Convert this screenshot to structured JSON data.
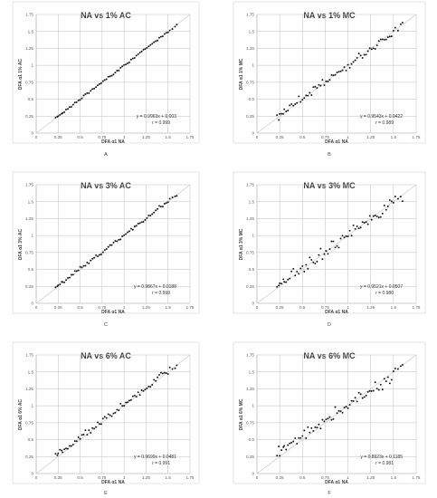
{
  "panels": [
    {
      "letter": "A",
      "title": "NA vs 1% AC",
      "eq": "y = 0.9963x + 0.003",
      "r": "r = 0.999"
    },
    {
      "letter": "B",
      "title": "NA vs 1% MC",
      "eq": "y = 0.9543x + 0.0422",
      "r": "r = 0.989"
    },
    {
      "letter": "C",
      "title": "NA vs 3% AC",
      "eq": "y = 0.9867x + 0.0188",
      "r": "r = 0.998"
    },
    {
      "letter": "D",
      "title": "NA vs 3% MC",
      "eq": "y = 0.9521x + 0.0507",
      "r": "r = 0.980"
    },
    {
      "letter": "E",
      "title": "NA vs 6% AC",
      "eq": "y = 0.9699x + 0.0481",
      "r": "r = 0.991"
    },
    {
      "letter": "F",
      "title": "NA vs 6% MC",
      "eq": "y = 0.8923x + 0.1185",
      "r": "r = 0.981"
    }
  ],
  "chart_data": [
    {
      "type": "scatter",
      "title": "NA vs 1% AC",
      "xlabel": "DFA α1 NA",
      "ylabel": "DFA α1 1% AC",
      "xlim": [
        0,
        1.75
      ],
      "ylim": [
        0,
        1.75
      ],
      "slope": 0.9963,
      "intercept": 0.003,
      "noise": 0.008,
      "x_ticks": [
        "0",
        "0.25",
        "0.5",
        "0.75",
        "1",
        "1.25",
        "1.5",
        "1.75"
      ],
      "y_ticks": [
        "0",
        "0.25",
        "0.5",
        "0.75",
        "1",
        "1.25",
        "1.5",
        "1.75"
      ]
    },
    {
      "type": "scatter",
      "title": "NA vs 1% MC",
      "xlabel": "DFA α1 NA",
      "ylabel": "DFA α1 1% MC",
      "xlim": [
        0,
        1.75
      ],
      "ylim": [
        0,
        1.75
      ],
      "slope": 0.9543,
      "intercept": 0.0422,
      "noise": 0.035,
      "x_ticks": [
        "0",
        "0.25",
        "0.5",
        "0.75",
        "1",
        "1.25",
        "1.5",
        "1.75"
      ],
      "y_ticks": [
        "0",
        "0.25",
        "0.5",
        "0.75",
        "1",
        "1.25",
        "1.5",
        "1.75"
      ]
    },
    {
      "type": "scatter",
      "title": "NA vs 3% AC",
      "xlabel": "DFA α1 NA",
      "ylabel": "DFA α1 3% AC",
      "xlim": [
        0,
        1.75
      ],
      "ylim": [
        0,
        1.75
      ],
      "slope": 0.9867,
      "intercept": 0.0188,
      "noise": 0.014,
      "x_ticks": [
        "0",
        "0.25",
        "0.5",
        "0.75",
        "1",
        "1.25",
        "1.5",
        "1.75"
      ],
      "y_ticks": [
        "0",
        "0.25",
        "0.5",
        "0.75",
        "1",
        "1.25",
        "1.5",
        "1.75"
      ]
    },
    {
      "type": "scatter",
      "title": "NA vs 3% MC",
      "xlabel": "DFA α1 NA",
      "ylabel": "DFA α1 3% MC",
      "xlim": [
        0,
        1.75
      ],
      "ylim": [
        0,
        1.75
      ],
      "slope": 0.9521,
      "intercept": 0.0507,
      "noise": 0.045,
      "x_ticks": [
        "0",
        "0.25",
        "0.5",
        "0.75",
        "1",
        "1.25",
        "1.5",
        "1.75"
      ],
      "y_ticks": [
        "0",
        "0.25",
        "0.5",
        "0.75",
        "1",
        "1.25",
        "1.5",
        "1.75"
      ]
    },
    {
      "type": "scatter",
      "title": "NA vs 6% AC",
      "xlabel": "DFA α1 NA",
      "ylabel": "DFA α1 6% AC",
      "xlim": [
        0,
        1.75
      ],
      "ylim": [
        0,
        1.75
      ],
      "slope": 0.9699,
      "intercept": 0.0481,
      "noise": 0.025,
      "x_ticks": [
        "0",
        "0.25",
        "0.5",
        "0.75",
        "1",
        "1.25",
        "1.5",
        "1.75"
      ],
      "y_ticks": [
        "0",
        "0.25",
        "0.5",
        "0.75",
        "1",
        "1.25",
        "1.5",
        "1.75"
      ]
    },
    {
      "type": "scatter",
      "title": "NA vs 6% MC",
      "xlabel": "DFA α1 NA",
      "ylabel": "DFA α1 6% MC",
      "xlim": [
        0,
        1.75
      ],
      "ylim": [
        0,
        1.75
      ],
      "slope": 0.8923,
      "intercept": 0.1185,
      "noise": 0.045,
      "x_ticks": [
        "0",
        "0.25",
        "0.5",
        "0.75",
        "1",
        "1.25",
        "1.5",
        "1.75"
      ],
      "y_ticks": [
        "0",
        "0.25",
        "0.5",
        "0.75",
        "1",
        "1.25",
        "1.5",
        "1.75"
      ]
    }
  ],
  "na_x_values": [
    0.22,
    0.24,
    0.25,
    0.27,
    0.29,
    0.3,
    0.32,
    0.34,
    0.36,
    0.38,
    0.4,
    0.42,
    0.44,
    0.46,
    0.48,
    0.5,
    0.52,
    0.54,
    0.56,
    0.58,
    0.6,
    0.62,
    0.64,
    0.66,
    0.68,
    0.7,
    0.72,
    0.74,
    0.76,
    0.78,
    0.8,
    0.82,
    0.84,
    0.86,
    0.88,
    0.9,
    0.92,
    0.94,
    0.96,
    0.98,
    1.0,
    1.02,
    1.04,
    1.06,
    1.08,
    1.1,
    1.12,
    1.14,
    1.16,
    1.18,
    1.2,
    1.22,
    1.24,
    1.26,
    1.28,
    1.3,
    1.32,
    1.34,
    1.36,
    1.38,
    1.4,
    1.42,
    1.44,
    1.46,
    1.48,
    1.5,
    1.52,
    1.55,
    1.58,
    1.6
  ]
}
